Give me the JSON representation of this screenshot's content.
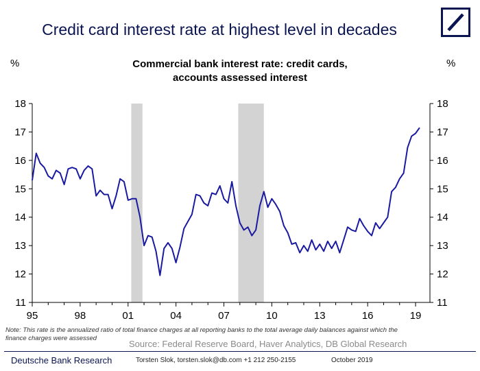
{
  "title": "Credit card interest rate at highest level in decades",
  "subtitle_line1": "Commercial bank interest rate: credit cards,",
  "subtitle_line2": "accounts assessed interest",
  "unit_left": "%",
  "unit_right": "%",
  "note": "Note: This rate is the annualized ratio of total finance charges at all reporting banks to the total average daily balances against which the finance charges were assessed",
  "source": "Source: Federal Reserve Board, Haver Analytics, DB Global Research",
  "footer": {
    "brand": "Deutsche Bank Research",
    "contact": "Torsten Slok, torsten.slok@db.com  +1 212 250-2155",
    "date": "October 2019"
  },
  "colors": {
    "line": "#1a1aa0",
    "recession": "#d3d3d3",
    "brand": "#0a1450"
  },
  "chart_data": {
    "type": "line",
    "ylim": [
      11,
      18
    ],
    "y_ticks": [
      11,
      12,
      13,
      14,
      15,
      16,
      17,
      18
    ],
    "y_tick_labels": [
      "11",
      "12",
      "13",
      "14",
      "15",
      "16",
      "17",
      "18"
    ],
    "xlim": [
      1995,
      2019.9
    ],
    "x_ticks": [
      1995,
      1998,
      2001,
      2004,
      2007,
      2010,
      2013,
      2016,
      2019
    ],
    "x_tick_labels": [
      "95",
      "98",
      "01",
      "04",
      "07",
      "10",
      "13",
      "16",
      "19"
    ],
    "recessions": [
      [
        2001.2,
        2001.9
      ],
      [
        2007.9,
        2009.5
      ]
    ],
    "series": [
      {
        "x": [
          1995.0,
          1995.25,
          1995.5,
          1995.75,
          1996.0,
          1996.25,
          1996.5,
          1996.75,
          1997.0,
          1997.25,
          1997.5,
          1997.75,
          1998.0,
          1998.25,
          1998.5,
          1998.75,
          1999.0,
          1999.25,
          1999.5,
          1999.75,
          2000.0,
          2000.25,
          2000.5,
          2000.75,
          2001.0,
          2001.25,
          2001.5,
          2001.75,
          2002.0,
          2002.25,
          2002.5,
          2002.75,
          2003.0,
          2003.25,
          2003.5,
          2003.75,
          2004.0,
          2004.25,
          2004.5,
          2004.75,
          2005.0,
          2005.25,
          2005.5,
          2005.75,
          2006.0,
          2006.25,
          2006.5,
          2006.75,
          2007.0,
          2007.25,
          2007.5,
          2007.75,
          2008.0,
          2008.25,
          2008.5,
          2008.75,
          2009.0,
          2009.25,
          2009.5,
          2009.75,
          2010.0,
          2010.25,
          2010.5,
          2010.75,
          2011.0,
          2011.25,
          2011.5,
          2011.75,
          2012.0,
          2012.25,
          2012.5,
          2012.75,
          2013.0,
          2013.25,
          2013.5,
          2013.75,
          2014.0,
          2014.25,
          2014.5,
          2014.75,
          2015.0,
          2015.25,
          2015.5,
          2015.75,
          2016.0,
          2016.25,
          2016.5,
          2016.75,
          2017.0,
          2017.25,
          2017.5,
          2017.75,
          2018.0,
          2018.25,
          2018.5,
          2018.75,
          2019.0,
          2019.25
        ],
        "values": [
          15.3,
          16.25,
          15.9,
          15.75,
          15.45,
          15.35,
          15.65,
          15.55,
          15.15,
          15.7,
          15.75,
          15.7,
          15.35,
          15.65,
          15.8,
          15.7,
          14.75,
          14.95,
          14.8,
          14.8,
          14.3,
          14.75,
          15.35,
          15.25,
          14.6,
          14.65,
          14.65,
          14.0,
          13.0,
          13.35,
          13.3,
          12.8,
          11.95,
          12.9,
          13.1,
          12.9,
          12.4,
          12.95,
          13.6,
          13.85,
          14.1,
          14.8,
          14.75,
          14.5,
          14.4,
          14.85,
          14.8,
          15.1,
          14.65,
          14.5,
          15.25,
          14.4,
          13.8,
          13.55,
          13.65,
          13.35,
          13.55,
          14.4,
          14.9,
          14.35,
          14.65,
          14.45,
          14.2,
          13.7,
          13.45,
          13.05,
          13.1,
          12.75,
          13.0,
          12.8,
          13.2,
          12.85,
          13.05,
          12.8,
          13.15,
          12.9,
          13.15,
          12.75,
          13.2,
          13.65,
          13.55,
          13.5,
          13.95,
          13.7,
          13.5,
          13.35,
          13.8,
          13.6,
          13.8,
          14.0,
          14.9,
          15.05,
          15.35,
          15.55,
          16.45,
          16.85,
          16.95,
          17.15
        ]
      }
    ]
  }
}
